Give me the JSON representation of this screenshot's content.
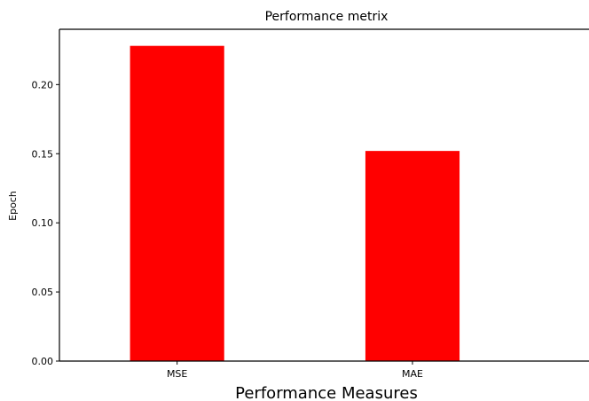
{
  "chart_data": {
    "type": "bar",
    "title": "Performance metrix",
    "xlabel": "Performance Measures",
    "ylabel": "Epoch",
    "categories": [
      "MSE",
      "MAE"
    ],
    "values": [
      0.228,
      0.152
    ],
    "ylim": [
      0,
      0.24
    ],
    "yticks": [
      "0.00",
      "0.05",
      "0.10",
      "0.15",
      "0.20"
    ],
    "bar_color": "#ff0000",
    "grid": false
  }
}
